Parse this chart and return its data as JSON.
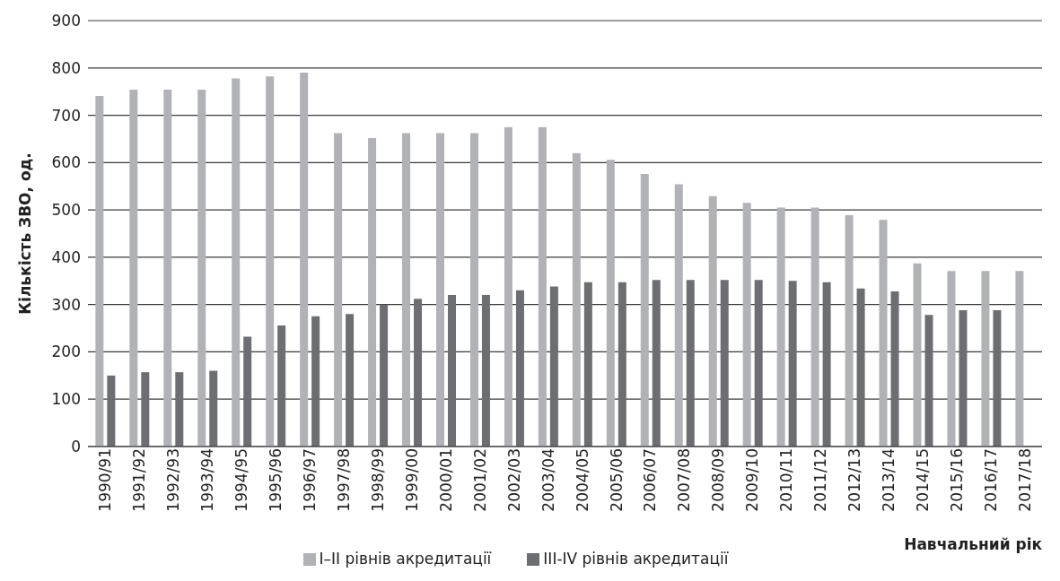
{
  "chart_data": {
    "type": "bar",
    "xlabel": "Навчальний рік",
    "ylabel": "Кількість ЗВО, од.",
    "categories": [
      "1990/91",
      "1991/92",
      "1992/93",
      "1993/94",
      "1994/95",
      "1995/96",
      "1996/97",
      "1997/98",
      "1998/99",
      "1999/00",
      "2000/01",
      "2001/02",
      "2002/03",
      "2003/04",
      "2004/05",
      "2005/06",
      "2006/07",
      "2007/08",
      "2008/09",
      "2009/10",
      "2010/11",
      "2011/12",
      "2012/13",
      "2013/14",
      "2014/15",
      "2015/16",
      "2016/17",
      "2017/18"
    ],
    "series": [
      {
        "name": "I–II рівнів акредитації",
        "color": "#b1b2b6",
        "values": [
          741,
          754,
          754,
          754,
          778,
          782,
          790,
          662,
          652,
          662,
          662,
          662,
          675,
          675,
          620,
          606,
          576,
          554,
          529,
          515,
          505,
          505,
          489,
          479,
          387,
          371,
          371,
          371
        ]
      },
      {
        "name": "III-IV рівнів акредитації",
        "color": "#6d6e72",
        "values": [
          150,
          157,
          157,
          160,
          232,
          256,
          275,
          280,
          300,
          312,
          320,
          320,
          330,
          338,
          347,
          347,
          352,
          352,
          352,
          352,
          350,
          347,
          334,
          328,
          278,
          288,
          288,
          null
        ]
      }
    ],
    "ylim": [
      0,
      900
    ],
    "yticks": [
      0,
      100,
      200,
      300,
      400,
      500,
      600,
      700,
      800,
      900
    ],
    "grid": "y",
    "legend": "bottom"
  }
}
